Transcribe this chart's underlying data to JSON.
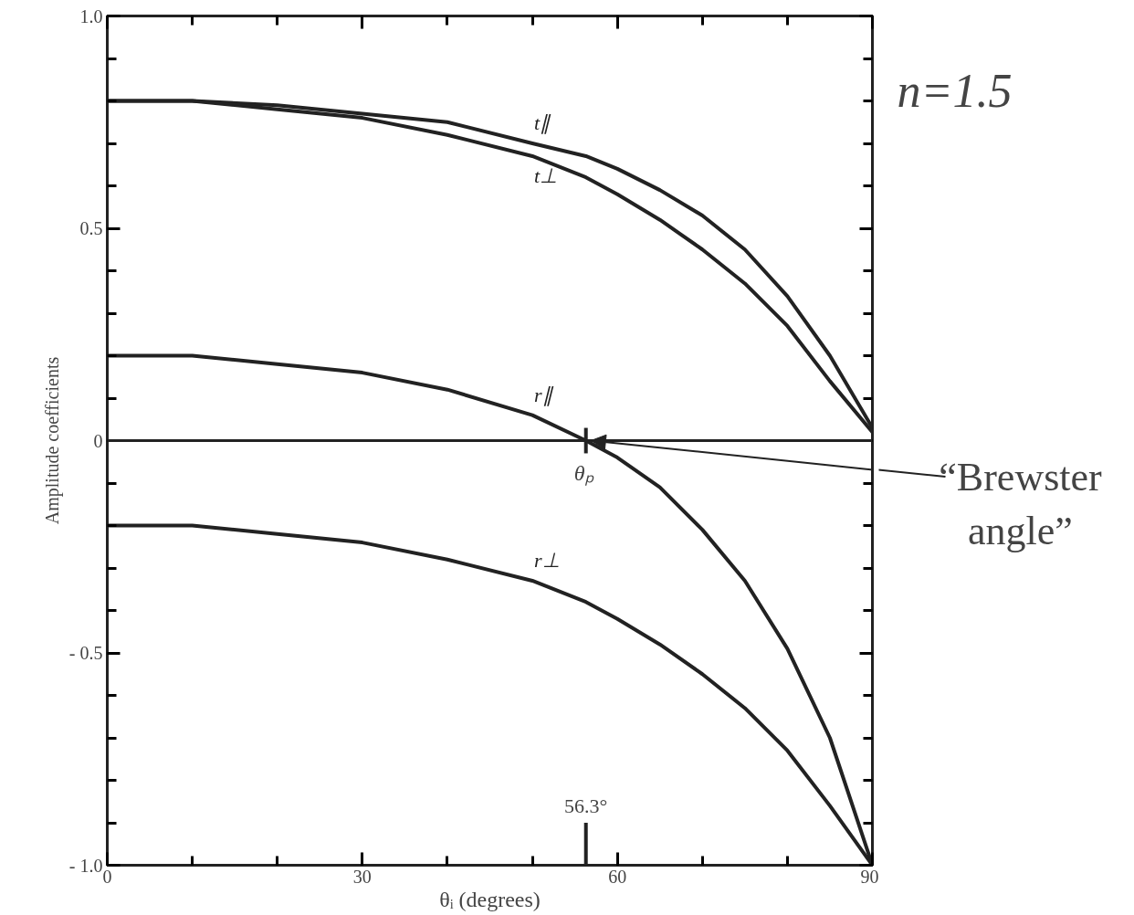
{
  "chart_data": {
    "type": "line",
    "xlabel": "θᵢ (degrees)",
    "ylabel": "Amplitude coefficients",
    "x": [
      0,
      10,
      20,
      30,
      40,
      50,
      56.3,
      60,
      65,
      70,
      75,
      80,
      85,
      90
    ],
    "series": [
      {
        "name": "t∥",
        "color": "#222222",
        "values": [
          0.8,
          0.8,
          0.79,
          0.77,
          0.75,
          0.7,
          0.67,
          0.64,
          0.59,
          0.53,
          0.45,
          0.34,
          0.2,
          0.03
        ]
      },
      {
        "name": "t⊥",
        "color": "#222222",
        "values": [
          0.8,
          0.8,
          0.78,
          0.76,
          0.72,
          0.67,
          0.62,
          0.58,
          0.52,
          0.45,
          0.37,
          0.27,
          0.14,
          0.02
        ]
      },
      {
        "name": "r∥",
        "color": "#222222",
        "values": [
          0.2,
          0.2,
          0.18,
          0.16,
          0.12,
          0.06,
          0.0,
          -0.04,
          -0.11,
          -0.21,
          -0.33,
          -0.49,
          -0.7,
          -1.0
        ]
      },
      {
        "name": "r⊥",
        "color": "#222222",
        "values": [
          -0.2,
          -0.2,
          -0.22,
          -0.24,
          -0.28,
          -0.33,
          -0.38,
          -0.42,
          -0.48,
          -0.55,
          -0.63,
          -0.73,
          -0.86,
          -1.0
        ]
      }
    ],
    "xlim": [
      0,
      90
    ],
    "ylim": [
      -1.0,
      1.0
    ],
    "xticks": [
      0,
      30,
      60,
      90
    ],
    "yticks": [
      {
        "value": -1.0,
        "label": "- 1.0"
      },
      {
        "value": -0.5,
        "label": "- 0.5"
      },
      0,
      0.5,
      {
        "value": 1.0,
        "label": "1.0"
      }
    ],
    "ref_lines": [
      {
        "axis": "y",
        "value": 0,
        "label": null
      }
    ],
    "annotations": [
      {
        "text": "θₚ",
        "x": 56.3,
        "y": 0
      },
      "56.3°",
      {
        "text": "“Brewster\nangle”",
        "x": 56.3,
        "y": 0
      },
      "n=1.5"
    ],
    "grid": false
  }
}
